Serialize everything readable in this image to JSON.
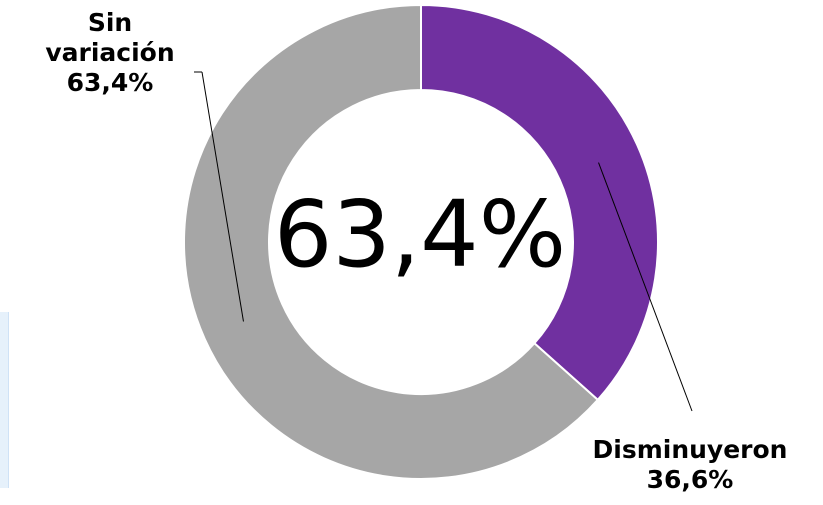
{
  "chart_data": {
    "type": "pie",
    "style": "donut",
    "center_label": "63,4%",
    "slices": [
      {
        "name_lines": [
          "Disminuyeron"
        ],
        "value_label": "36,6%",
        "value": 36.6,
        "color": "#7030a0"
      },
      {
        "name_lines": [
          "Sin",
          "variación"
        ],
        "value_label": "63,4%",
        "value": 63.4,
        "color": "#a6a6a6"
      }
    ]
  }
}
